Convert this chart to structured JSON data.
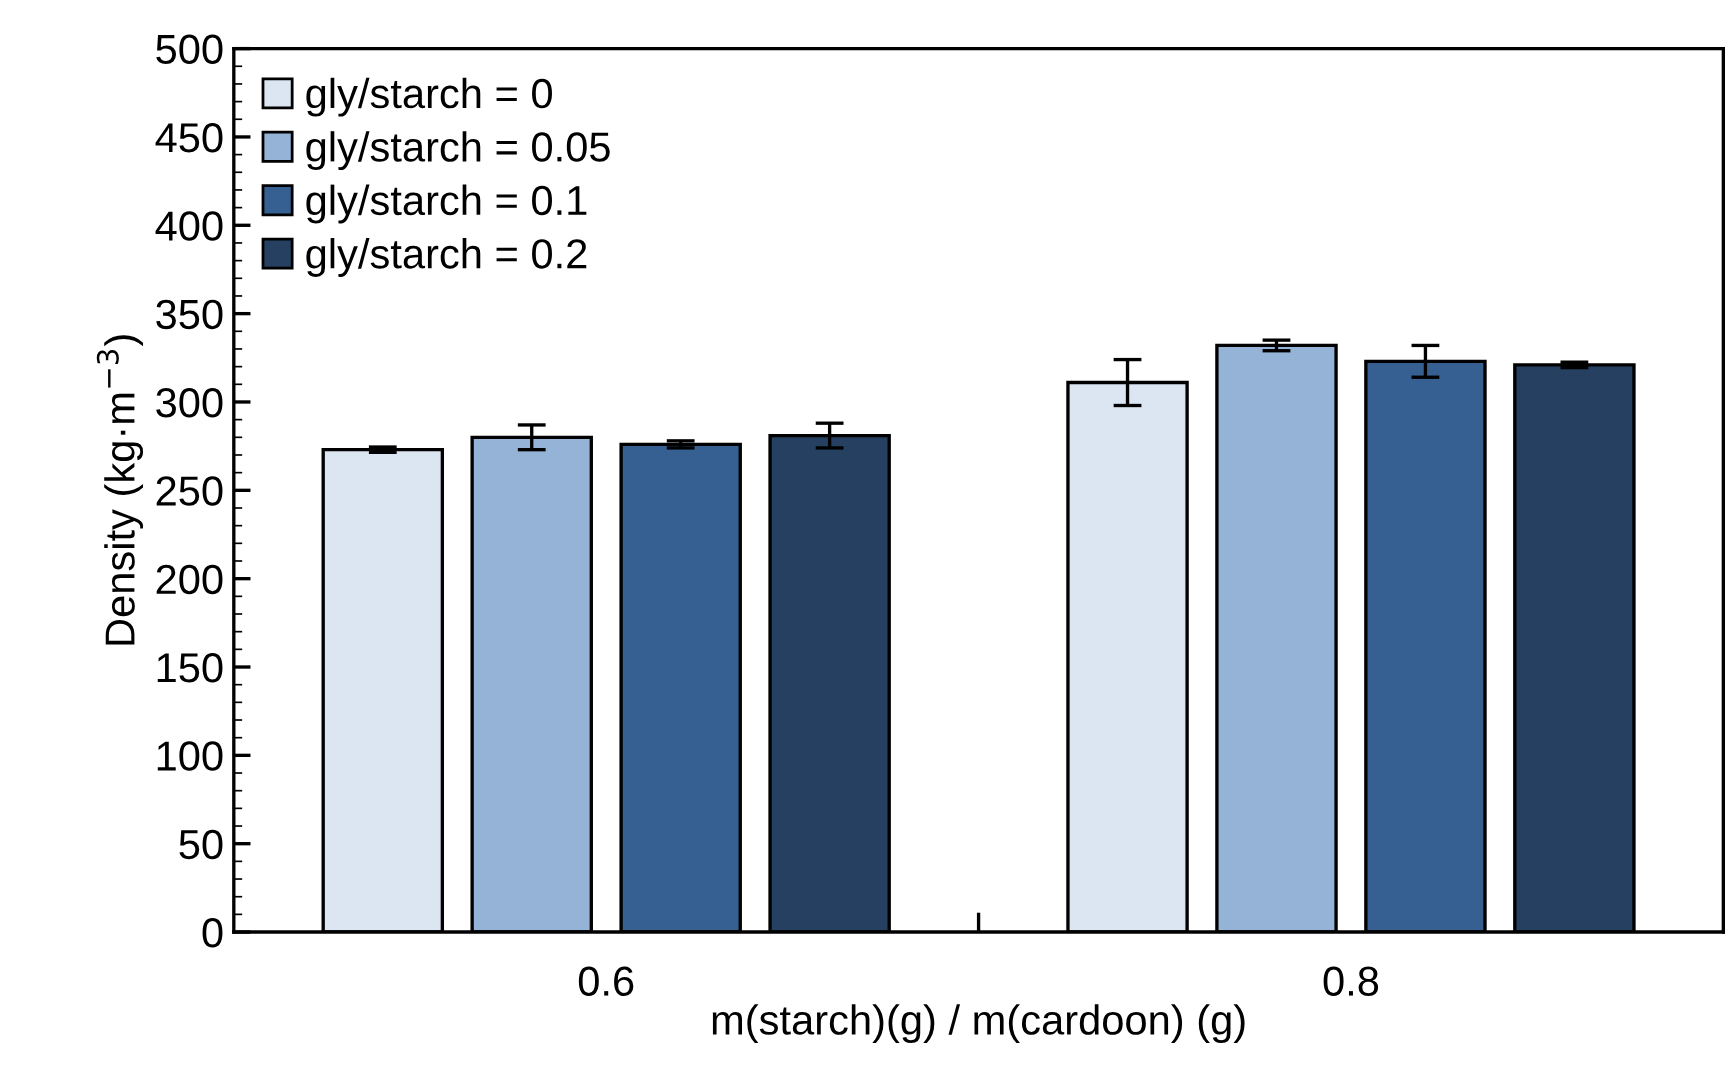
{
  "chart_data": {
    "type": "bar",
    "xlabel": "m(starch)(g) / m(cardoon) (g)",
    "ylabel": "Density (kg·m$^{−3}$)",
    "categories": [
      "0.6",
      "0.8"
    ],
    "series": [
      {
        "name": "gly/starch = 0",
        "color": "#dce6f2",
        "values": [
          273,
          311
        ],
        "errors": [
          1.5,
          13
        ]
      },
      {
        "name": "gly/starch = 0.05",
        "color": "#95b3d7",
        "values": [
          280,
          332
        ],
        "errors": [
          7,
          3
        ]
      },
      {
        "name": "gly/starch = 0.1",
        "color": "#366092",
        "values": [
          276,
          323
        ],
        "errors": [
          2,
          9
        ]
      },
      {
        "name": "gly/starch = 0.2",
        "color": "#254061",
        "values": [
          281,
          321
        ],
        "errors": [
          7,
          1.5
        ]
      }
    ],
    "ylim": [
      0,
      500
    ],
    "yticks": [
      0,
      50,
      100,
      150,
      200,
      250,
      300,
      350,
      400,
      450,
      500
    ],
    "grid": false,
    "legend": "top left"
  }
}
